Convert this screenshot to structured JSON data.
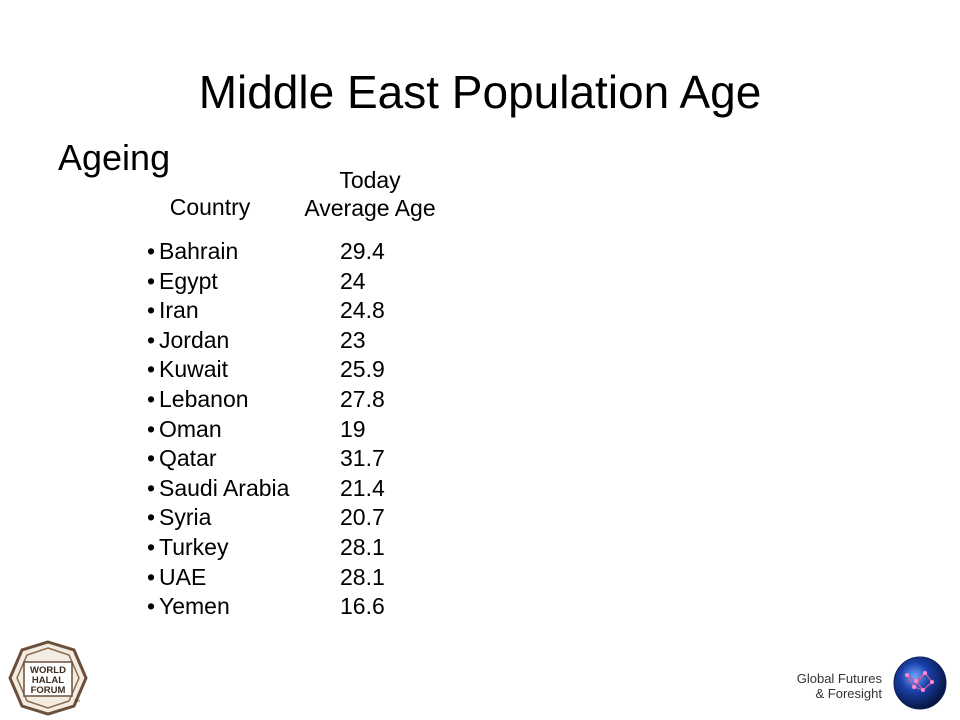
{
  "slide": {
    "title": "Middle East Population Age",
    "subtitle": "Ageing"
  },
  "table": {
    "country_header": "Country",
    "age_header_line1": "Today",
    "age_header_line2": "Average Age",
    "bullet": "•",
    "rows": [
      {
        "country": "Bahrain",
        "age": "29.4"
      },
      {
        "country": "Egypt",
        "age": "24"
      },
      {
        "country": "Iran",
        "age": "24.8"
      },
      {
        "country": "Jordan",
        "age": "23"
      },
      {
        "country": "Kuwait",
        "age": "25.9"
      },
      {
        "country": "Lebanon",
        "age": "27.8"
      },
      {
        "country": "Oman",
        "age": "19"
      },
      {
        "country": "Qatar",
        "age": "31.7"
      },
      {
        "country": "Saudi Arabia",
        "age": "21.4"
      },
      {
        "country": "Syria",
        "age": "20.7"
      },
      {
        "country": "Turkey",
        "age": "28.1"
      },
      {
        "country": "UAE",
        "age": "28.1"
      },
      {
        "country": "Yemen",
        "age": "16.6"
      }
    ]
  },
  "footer": {
    "left_logo": {
      "icon": "world-halal-forum-logo",
      "line1": "WORLD",
      "line2": "HALAL",
      "line3": "FORUM",
      "mark": "TM",
      "color": "#6b4f3a"
    },
    "right_text_line1": "Global Futures",
    "right_text_line2": "& Foresight",
    "right_logo": {
      "icon": "global-futures-globe-logo",
      "color": "#1a3fa8"
    }
  }
}
